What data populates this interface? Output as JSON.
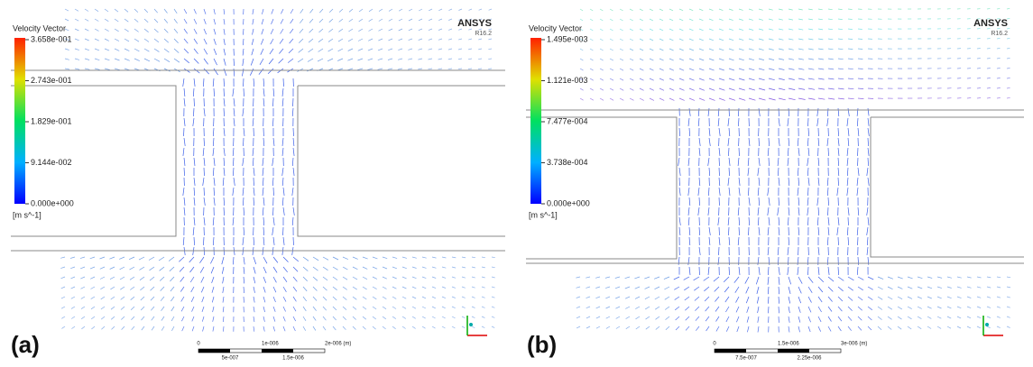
{
  "panels": [
    {
      "label": "(a)",
      "legend_title": "Velocity Vector",
      "legend_ticks": [
        "3.658e-001",
        "2.743e-001",
        "1.829e-001",
        "9.144e-002",
        "0.000e+000"
      ],
      "unit": "[m s^-1]",
      "brand": "ANSYS",
      "version": "R16.2",
      "scale_top": [
        "0",
        "1e-006",
        "2e-006 (m)"
      ],
      "scale_bottom": [
        "5e-007",
        "1.5e-006"
      ]
    },
    {
      "label": "(b)",
      "legend_title": "Velocity Vector",
      "legend_ticks": [
        "1.495e-003",
        "1.121e-003",
        "7.477e-004",
        "3.738e-004",
        "0.000e+000"
      ],
      "unit": "[m s^-1]",
      "brand": "ANSYS",
      "version": "R16.2",
      "scale_top": [
        "0",
        "1.5e-006",
        "3e-006 (m)"
      ],
      "scale_bottom": [
        "7.5e-007",
        "2.25e-006"
      ]
    }
  ]
}
